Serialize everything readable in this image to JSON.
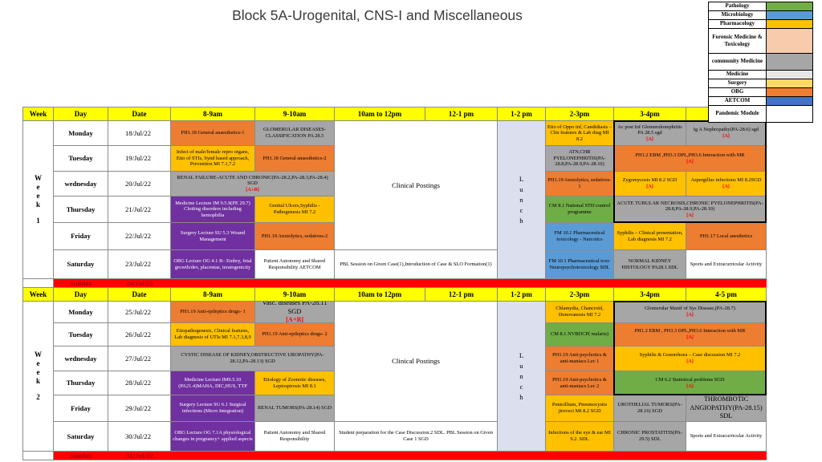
{
  "title": "Block 5A-Urogenital, CNS-I and Miscellaneous",
  "palette": {
    "orange": "#ED7D31",
    "amber": "#FFC000",
    "gray": "#A6A6A6",
    "green": "#70AD47",
    "blue": "#5B9BD5",
    "purple": "#7030A0",
    "white": "#FFFFFF",
    "lavender": "#DCE0EE",
    "header_yellow": "#FFFF00",
    "sunday_red": "#FF0000",
    "sunday_text": "#A00000",
    "marker_red": "#FF0000"
  },
  "legend": {
    "items": [
      {
        "label": "Pathology",
        "color": "#70AD47"
      },
      {
        "label": "Microbiology",
        "color": "#5B9BD5"
      },
      {
        "label": "Pharmacology",
        "color": "#FFC000"
      },
      {
        "label": "Forensic Medicine & Toxicology",
        "color": "#F8CBAD"
      },
      {
        "label": "community Medicine",
        "color": "#A6A6A6"
      },
      {
        "label": "Medicine",
        "color": "#E7E6E6"
      },
      {
        "label": "Surgery",
        "color": "#FFD966"
      },
      {
        "label": "OBG",
        "color": "#ED7D31"
      },
      {
        "label": "AETCOM",
        "color": "#4472C4"
      },
      {
        "label": "Pandemic Module",
        "color": "#FFFFFF"
      }
    ]
  },
  "columns": [
    "Week",
    "Day",
    "Date",
    "8-9am",
    "9-10am",
    "10am to 12pm",
    "12-1 pm",
    "1-2 pm",
    "2-3pm",
    "3-4pm",
    "4-5 pm"
  ],
  "weeks": [
    {
      "name": "week-1",
      "week_word": "Week",
      "week_number": "1",
      "lunch_label": "Lunch",
      "clinical_postings": "Clinical Postings",
      "days": [
        {
          "day": "Monday",
          "date": "18/Jul/22"
        },
        {
          "day": "Tuesday",
          "date": "19/Jul/22"
        },
        {
          "day": "wednesday",
          "date": "20/Jul/22"
        },
        {
          "day": "Thursday",
          "date": "21/Jul/22"
        },
        {
          "day": "Friday",
          "date": "22/Jul/22"
        },
        {
          "day": "Saturday",
          "date": "23/Jul/22"
        }
      ],
      "cells": [
        {
          "row": 2,
          "col": 4,
          "color": "orange",
          "text": "PH1.18 General anaesthetics-1"
        },
        {
          "row": 2,
          "col": 5,
          "color": "gray",
          "text": "GLOMERULAR DISEASES-CLASSIFICATION PA 28.5"
        },
        {
          "row": 2,
          "col": 9,
          "color": "amber",
          "text": "Etio of Oppo inf, Candidiasis – Clin features & Lab diag MI 8.2"
        },
        {
          "row": 2,
          "col": 10,
          "color": "gray",
          "text": "Ac post Inf Glomerulonephritis PA 28.5 sgd",
          "marker": "[A]"
        },
        {
          "row": 2,
          "col": 11,
          "color": "gray",
          "text": "Ig A Nephropathy(PA-28.6) sgd",
          "marker": "[A]"
        },
        {
          "row": 3,
          "col": 4,
          "color": "amber",
          "text": "Infect of male/female repro organs, Etio of STIs, Synd based approach, Prevention MI 7.1,7.2"
        },
        {
          "row": 3,
          "col": 5,
          "color": "orange",
          "text": "PH1.18 General anaesthetics-2"
        },
        {
          "row": 3,
          "col": 9,
          "color": "gray",
          "text": "ATN,CHR PYELONEPHRITIS(PA-28.8,PA-28.9,PA-28.10)"
        },
        {
          "row": 3,
          "col": 10,
          "col_span": 2,
          "color": "orange",
          "text": "PH1.2 EBM ,PH3.3 DPL,PH3.6  Interaction with MR",
          "marker": "[A]"
        },
        {
          "row": 4,
          "col": 4,
          "col_span": 2,
          "color": "gray",
          "text": "RENAL FAILURE-ACUTE AND CHRONIC(PA-28.2,PA-28.3,PA-28.4) SGD",
          "marker": "[A+B]"
        },
        {
          "row": 4,
          "col": 9,
          "color": "orange",
          "text": "PH1.19 Anxiolytics, sedatives-1"
        },
        {
          "row": 4,
          "col": 10,
          "color": "amber",
          "text": "Zygomycosis MI 8.2 SGD",
          "marker": "[A]"
        },
        {
          "row": 4,
          "col": 11,
          "color": "amber",
          "text": "Aspergillus infections MI 8.2SGD",
          "marker": "[A]"
        },
        {
          "row": 5,
          "col": 4,
          "color": "purple",
          "text": "Medicine Lecture IM 9.5.9(PE 29.7) Clotting disorders including hemophilia"
        },
        {
          "row": 5,
          "col": 5,
          "color": "amber",
          "text": "Genital Ulcers,Syphilis - Pathogenesis MI 7.2"
        },
        {
          "row": 5,
          "col": 9,
          "color": "green",
          "text": "CM 8.1 National STD control programme"
        },
        {
          "row": 5,
          "col": 10,
          "col_span": 2,
          "color": "gray",
          "text": "ACUTE TUBULAR NECROSIS,CHRONIC PYELONEPHRITIS(PA-28.8,PA-28.9,PA-28.10)",
          "marker": "[A]"
        },
        {
          "row": 6,
          "col": 4,
          "color": "purple",
          "text": "Surgery  Lecture SU 5.3 Wound Management"
        },
        {
          "row": 6,
          "col": 5,
          "color": "orange",
          "text": "PH1.19 Anxiolytics, sedatives-2"
        },
        {
          "row": 6,
          "col": 9,
          "color": "blue",
          "text": "FM 10.1 Pharmaceutical toxicology - Narcotics"
        },
        {
          "row": 6,
          "col": 10,
          "color": "amber",
          "text": "Syphilis – Clinical presentation, Lab diagnosis MI 7.2"
        },
        {
          "row": 6,
          "col": 11,
          "color": "orange",
          "text": "PH1.17 Local anesthetics"
        },
        {
          "row": 7,
          "col": 4,
          "color": "purple",
          "text": "OBG Lecture OG 4.1 B– Embry, fetal growth/dev, placentae, teratogenicity"
        },
        {
          "row": 7,
          "col": 5,
          "color": "white",
          "text": "Patient Autonomy and Shared Responsibility AETCOM"
        },
        {
          "row": 7,
          "col": 6,
          "col_span": 2,
          "color": "white",
          "text": "PBL Session on Given Case(1),Introduction of Case & SLO Formation(1)"
        },
        {
          "row": 7,
          "col": 9,
          "color": "blue",
          "text": "FM 10.1 Pharmaceutical toxi-Neuropsychotoxicology SDL"
        },
        {
          "row": 7,
          "col": 10,
          "color": "gray",
          "text": "NORMAL KIDNEY HISTOLOGY PA28.1.SDL"
        },
        {
          "row": 7,
          "col": 11,
          "color": "white",
          "text": "Sports and Extracurricular Activity"
        }
      ],
      "sunday": {
        "label": "Sunday",
        "date": "24/Jul/22",
        "extends_right": false
      }
    },
    {
      "name": "week-2",
      "week_word": "Week",
      "week_number": "2",
      "lunch_label": "Lunch",
      "clinical_postings": "Clinical Postings",
      "days": [
        {
          "day": "Monday",
          "date": "25/Jul/22"
        },
        {
          "day": "Tuesday",
          "date": "26/Jul/22"
        },
        {
          "day": "wednesday",
          "date": "27/Jul/22"
        },
        {
          "day": "Thursday",
          "date": "28/Jul/22"
        },
        {
          "day": "Friday",
          "date": "29/Jul/22"
        },
        {
          "day": "Saturday",
          "date": "30/Jul/22"
        }
      ],
      "cells": [
        {
          "row": 2,
          "col": 4,
          "color": "orange",
          "text": "PH1.19 Anti-epileptics drugs- 1"
        },
        {
          "row": 2,
          "col": 5,
          "color": "gray",
          "large": true,
          "text": "Vasc. diseases PA-28.11 SGD",
          "marker": "[A+B]"
        },
        {
          "row": 2,
          "col": 9,
          "color": "amber",
          "text": "Chlamydia, Chancroid, Donovanosis MI 7.2"
        },
        {
          "row": 2,
          "col": 10,
          "col_span": 2,
          "color": "gray",
          "text": "Glomerular Manif of Sys Disease,(PA-28.7)",
          "marker": "[A]"
        },
        {
          "row": 3,
          "col": 4,
          "color": "amber",
          "text": "Etiopathogenesis, Clinical features, Lab diagnosis of UTIs MI 7.1,7.3,8,9"
        },
        {
          "row": 3,
          "col": 5,
          "color": "orange",
          "text": "PH1.19 Anti-epileptics drugs- 2"
        },
        {
          "row": 3,
          "col": 9,
          "color": "green",
          "text": "CM 8.1 NVBDCP( malaria)"
        },
        {
          "row": 3,
          "col": 10,
          "col_span": 2,
          "color": "orange",
          "text": "PH1.2 EBM , PH3.3 DPL,PH3.6  Interaction with MR",
          "marker": "[A]"
        },
        {
          "row": 4,
          "col": 4,
          "col_span": 2,
          "color": "gray",
          "text": "CYSTIC DISEASE OF KIDNEY,OBSTRUCTIVE UROPATHY(PA-28.12,PA-28.13) SGD"
        },
        {
          "row": 4,
          "col": 9,
          "color": "orange",
          "text": "PH1.19 Anti-psychotics & anti-maniacs Lec 1"
        },
        {
          "row": 4,
          "col": 10,
          "col_span": 2,
          "color": "amber",
          "text": "Syphilis & Gonorrhoea – Case discussion MI 7.2",
          "marker": "[A]"
        },
        {
          "row": 5,
          "col": 4,
          "color": "purple",
          "text": "Medicine Lecture IM9.5.10 (PA21.4)MAHA, DIC,HUS, TTP"
        },
        {
          "row": 5,
          "col": 5,
          "color": "amber",
          "text": "Etiology of Zoonotic diseases, Leptospirosis MI 8.1"
        },
        {
          "row": 5,
          "col": 9,
          "color": "orange",
          "text": "PH1.19 Anti-psychotics & anti-maniacs Lec 2"
        },
        {
          "row": 5,
          "col": 10,
          "col_span": 2,
          "color": "green",
          "text": "CM 6.2 Statistical problems SGD",
          "marker": "[A]"
        },
        {
          "row": 6,
          "col": 4,
          "color": "purple",
          "text": "Surgery Lecture SU 6.1 Surgical infections (Micro Integration)"
        },
        {
          "row": 6,
          "col": 5,
          "color": "gray",
          "text": "RENAL TUMORS(PA-28.14) SGD"
        },
        {
          "row": 6,
          "col": 9,
          "color": "amber",
          "text": "Penicillium, Pneumocystis jiroveci MI 8.2 SGD"
        },
        {
          "row": 6,
          "col": 10,
          "color": "gray",
          "text": "UROTHELIAL TUMORS(PA-28.16) SGD"
        },
        {
          "row": 6,
          "col": 11,
          "color": "gray",
          "large": true,
          "text": "THROMBOTIC ANGIOPATHY(PA-28.15) SDL"
        },
        {
          "row": 7,
          "col": 4,
          "color": "purple",
          "text": "OBG Lecture OG 7.1A physiological changes in pregnancy+ applied aspects"
        },
        {
          "row": 7,
          "col": 5,
          "color": "white",
          "text": "Patient Autonomy and Shared Responsibility"
        },
        {
          "row": 7,
          "col": 6,
          "col_span": 2,
          "color": "white",
          "text": "Student preparation for the Case Discussion.2 SDL.  PBL Session on Given Case 1 SGD"
        },
        {
          "row": 7,
          "col": 9,
          "color": "amber",
          "text": "Infections of the eye & ear MI 9.2. SDL"
        },
        {
          "row": 7,
          "col": 10,
          "color": "gray",
          "text": "CHRONIC PROSTATITIS(PA-29.5) SDL"
        },
        {
          "row": 7,
          "col": 11,
          "color": "white",
          "text": "Sports and Extracurricular Activity"
        }
      ],
      "sunday": {
        "label": "Sunday",
        "date": "31/Jul/22",
        "extends_right": true
      }
    }
  ]
}
